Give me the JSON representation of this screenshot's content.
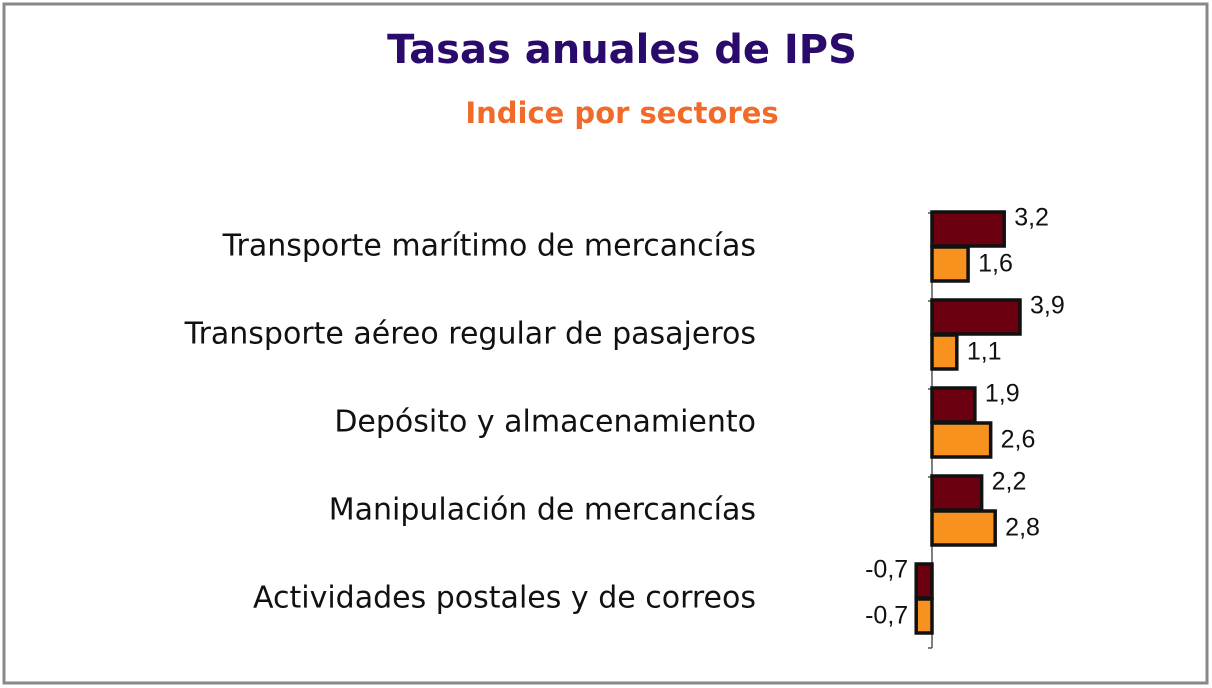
{
  "chart_data": {
    "type": "bar",
    "orientation": "horizontal",
    "title": "Tasas anuales de IPS",
    "subtitle": "Indice por sectores",
    "categories": [
      "Transporte marítimo de mercancías",
      "Transporte aéreo regular de pasajeros",
      "Depósito y almacenamiento",
      "Manipulación de mercancías",
      "Actividades postales y de correos"
    ],
    "series": [
      {
        "color": "#6b0010",
        "values": [
          3.2,
          3.9,
          1.9,
          2.2,
          -0.7
        ],
        "value_labels": [
          "3,2",
          "3,9",
          "1,9",
          "2,2",
          "-0,7"
        ]
      },
      {
        "color": "#f7921e",
        "values": [
          1.6,
          1.1,
          2.6,
          2.8,
          -0.7
        ],
        "value_labels": [
          "1,6",
          "1,1",
          "2,6",
          "2,8",
          "-0,7"
        ]
      }
    ]
  }
}
